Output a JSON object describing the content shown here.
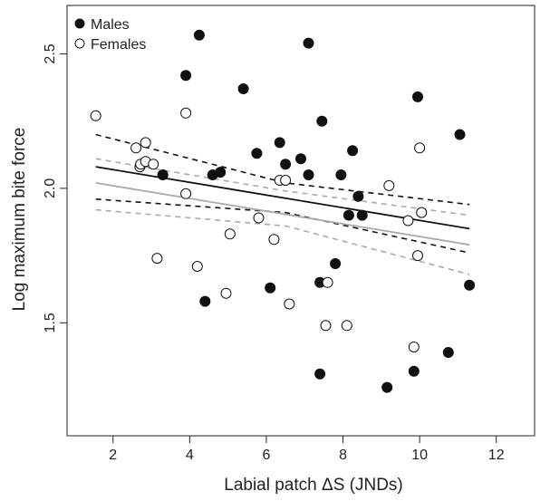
{
  "chart_data": {
    "type": "scatter",
    "xlabel": "Labial patch ΔS (JNDs)",
    "ylabel": "Log maximum bite force",
    "xlim": [
      0.8,
      13.0
    ],
    "ylim": [
      1.08,
      2.68
    ],
    "xticks": [
      2,
      4,
      6,
      8,
      10,
      12
    ],
    "yticks": [
      1.5,
      2.0,
      2.5
    ],
    "xtick_labels": [
      "2",
      "4",
      "6",
      "8",
      "10",
      "12"
    ],
    "ytick_labels": [
      "1.5",
      "2.0",
      "2.5"
    ],
    "legend": {
      "placement": "top-left",
      "entries": [
        "Males",
        "Females"
      ]
    },
    "series": [
      {
        "name": "Males",
        "marker": "filled-circle",
        "color": "#111111",
        "points": [
          [
            3.3,
            2.05
          ],
          [
            3.9,
            2.42
          ],
          [
            4.25,
            2.57
          ],
          [
            4.4,
            1.58
          ],
          [
            4.6,
            2.05
          ],
          [
            4.8,
            2.06
          ],
          [
            5.4,
            2.37
          ],
          [
            5.75,
            2.13
          ],
          [
            6.1,
            1.63
          ],
          [
            6.35,
            2.17
          ],
          [
            6.5,
            2.09
          ],
          [
            6.9,
            2.11
          ],
          [
            7.1,
            2.54
          ],
          [
            7.1,
            2.05
          ],
          [
            7.4,
            1.31
          ],
          [
            7.4,
            1.65
          ],
          [
            7.45,
            2.25
          ],
          [
            7.8,
            1.72
          ],
          [
            7.95,
            2.05
          ],
          [
            8.15,
            1.9
          ],
          [
            8.25,
            2.14
          ],
          [
            8.4,
            1.97
          ],
          [
            8.5,
            1.9
          ],
          [
            9.15,
            1.26
          ],
          [
            9.85,
            1.32
          ],
          [
            9.95,
            2.34
          ],
          [
            10.75,
            1.39
          ],
          [
            11.05,
            2.2
          ],
          [
            11.3,
            1.64
          ]
        ]
      },
      {
        "name": "Females",
        "marker": "open-circle",
        "color": "#111111",
        "points": [
          [
            1.55,
            2.27
          ],
          [
            2.6,
            2.15
          ],
          [
            2.7,
            2.08
          ],
          [
            2.72,
            2.09
          ],
          [
            2.85,
            2.17
          ],
          [
            2.85,
            2.1
          ],
          [
            3.05,
            2.09
          ],
          [
            3.15,
            1.74
          ],
          [
            3.9,
            2.28
          ],
          [
            3.9,
            1.98
          ],
          [
            4.2,
            1.71
          ],
          [
            4.95,
            1.61
          ],
          [
            5.05,
            1.83
          ],
          [
            5.8,
            1.89
          ],
          [
            6.2,
            1.81
          ],
          [
            6.35,
            2.03
          ],
          [
            6.5,
            2.03
          ],
          [
            6.6,
            1.57
          ],
          [
            7.55,
            1.49
          ],
          [
            7.6,
            1.65
          ],
          [
            8.1,
            1.49
          ],
          [
            9.2,
            2.01
          ],
          [
            9.7,
            1.88
          ],
          [
            9.85,
            1.41
          ],
          [
            9.95,
            1.75
          ],
          [
            10.0,
            2.15
          ],
          [
            10.05,
            1.91
          ]
        ]
      }
    ],
    "fit_lines": [
      {
        "group": "Males",
        "style": "solid",
        "color": "#111111",
        "x": [
          1.55,
          11.3
        ],
        "y": [
          2.08,
          1.85
        ]
      },
      {
        "group": "Males",
        "style": "dashed",
        "color": "#111111",
        "x": [
          1.55,
          6.5,
          11.3
        ],
        "y": [
          2.2,
          2.02,
          1.94
        ]
      },
      {
        "group": "Males",
        "style": "dashed",
        "color": "#111111",
        "x": [
          1.55,
          6.5,
          11.3
        ],
        "y": [
          1.96,
          1.91,
          1.76
        ]
      },
      {
        "group": "Females",
        "style": "solid",
        "color": "#aaaaaa",
        "x": [
          1.55,
          11.3
        ],
        "y": [
          2.02,
          1.79
        ]
      },
      {
        "group": "Females",
        "style": "dashed",
        "color": "#aaaaaa",
        "x": [
          1.55,
          6.5,
          11.3
        ],
        "y": [
          2.11,
          1.99,
          1.9
        ]
      },
      {
        "group": "Females",
        "style": "dashed",
        "color": "#aaaaaa",
        "x": [
          1.55,
          6.5,
          11.3
        ],
        "y": [
          1.92,
          1.86,
          1.68
        ]
      }
    ]
  }
}
